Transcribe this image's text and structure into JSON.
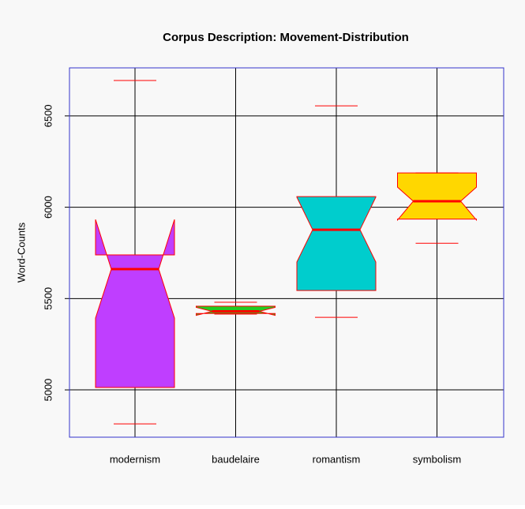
{
  "chart_data": {
    "type": "boxplot",
    "title": "Corpus Description: Movement-Distribution",
    "y_label": "Word-Counts",
    "categories": [
      "modernism",
      "baudelaire",
      "romantism",
      "symbolism"
    ],
    "whisker_low": [
      4814,
      5415,
      5397,
      5803
    ],
    "q1": [
      5013,
      5418,
      5544,
      5935
    ],
    "median": [
      5661,
      5430,
      5877,
      6033
    ],
    "q3": [
      5739,
      5458,
      6058,
      6188
    ],
    "whisker_high": [
      6694,
      5480,
      6555,
      6188
    ],
    "notch_low": [
      5393,
      5408,
      5700,
      5930
    ],
    "notch_high": [
      5933,
      5452,
      6055,
      6110
    ],
    "colors": [
      "#bf3eff",
      "#22cc22",
      "#00cdcd",
      "#ffd700"
    ],
    "ylim": [
      4741,
      6763
    ],
    "yticks": [
      5000,
      5500,
      6000,
      6500
    ],
    "grid": true
  }
}
